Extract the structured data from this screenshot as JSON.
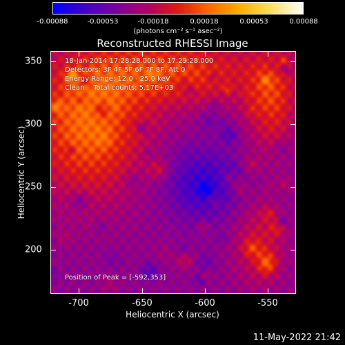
{
  "colorbar": {
    "tick_labels": [
      "-0.00088",
      "-0.00053",
      "-0.00018",
      "0.00018",
      "0.00053",
      "0.00088"
    ],
    "units": "(photons cm⁻² s⁻¹ asec⁻²)",
    "colormap": [
      "#0000ff",
      "#4400c8",
      "#7a00a0",
      "#b0006a",
      "#e01a10",
      "#ff6a00",
      "#ffb000",
      "#ffe060",
      "#ffffff"
    ]
  },
  "plot": {
    "title": "Reconstructed RHESSI Image",
    "xlabel": "Heliocentric X (arcsec)",
    "ylabel": "Heliocentric Y (arcsec)",
    "xticks": [
      "-700",
      "-650",
      "-600",
      "-550"
    ],
    "yticks": [
      "350",
      "300",
      "250",
      "200"
    ],
    "xlim": [
      -722,
      -528
    ],
    "ylim": [
      165,
      357
    ]
  },
  "info": {
    "line1": "18-Jan-2014 17:28:28.000 to 17:29:28.000",
    "line2": "Detectors: 3F 4F 5F 6F 7F 8F, Att 0",
    "line3": "Energy Range: 12.0 - 25.0 keV",
    "line4": "Clean    Total counts: 5.17E+03",
    "peak": "Position of Peak = [-592,353]"
  },
  "timestamp": "11-May-2022 21:42"
}
